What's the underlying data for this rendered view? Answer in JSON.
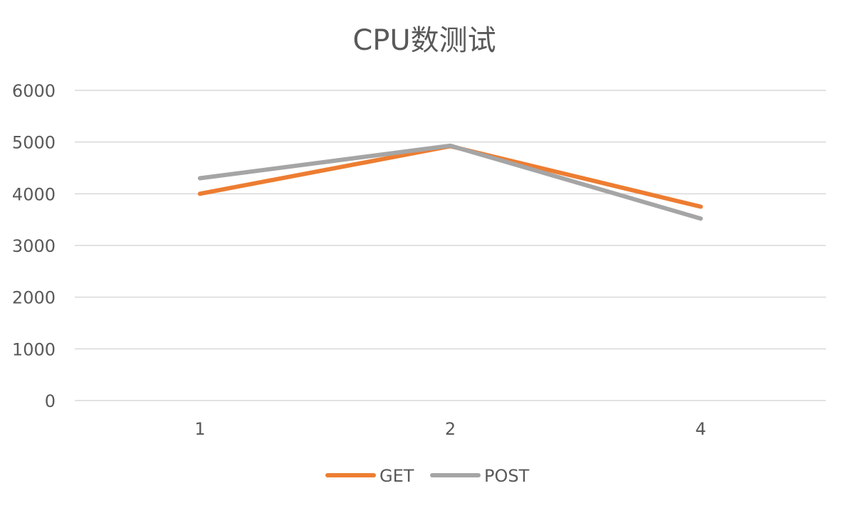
{
  "chart_data": {
    "type": "line",
    "title": "CPU数测试",
    "categories": [
      "1",
      "2",
      "4"
    ],
    "ylim": [
      0,
      6000
    ],
    "yticks": [
      0,
      1000,
      2000,
      3000,
      4000,
      5000,
      6000
    ],
    "grid": true,
    "legend_position": "bottom",
    "series": [
      {
        "name": "GET",
        "values": [
          4000,
          4920,
          3750
        ],
        "color": "#ed7d31"
      },
      {
        "name": "POST",
        "values": [
          4300,
          4930,
          3520
        ],
        "color": "#a5a5a5"
      }
    ]
  }
}
